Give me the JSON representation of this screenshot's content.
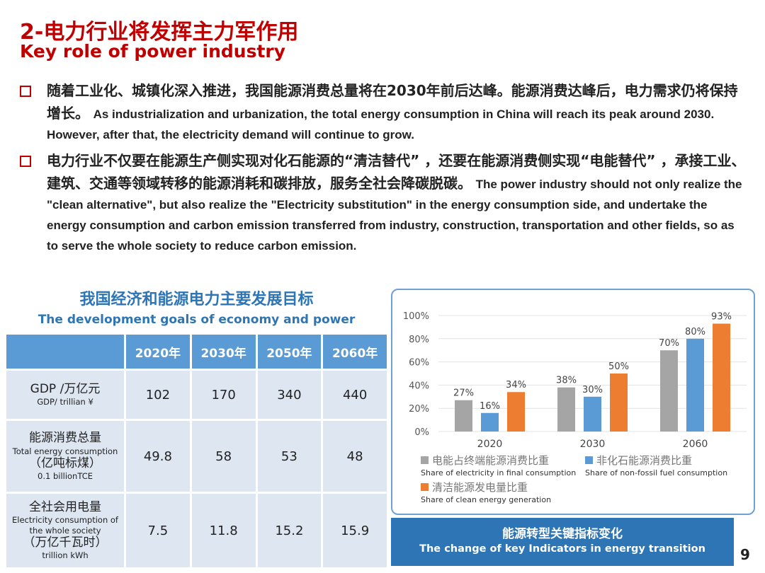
{
  "title": {
    "cn": "2-电力行业将发挥主力军作用",
    "en": "Key role of power industry"
  },
  "bullets": [
    {
      "cn": "随着工业化、城镇化深入推进，我国能源消费总量将在2030年前后达峰。能源消费达峰后，电力需求仍将保持增长。",
      "en": "As industrialization and urbanization, the total energy consumption in China will reach its peak around 2030. However, after that, the electricity demand will continue to grow."
    },
    {
      "cn": "电力行业不仅要在能源生产侧实现对化石能源的“清洁替代” ，还要在能源消费侧实现“电能替代” ，承接工业、建筑、交通等领域转移的能源消耗和碳排放，服务全社会降碳脱碳。",
      "en": "The power industry should not only realize the \"clean alternative\", but also realize the \"Electricity substitution\" in the energy consumption side, and undertake the energy consumption and carbon emission transferred from industry, construction, transportation and other fields, so as to serve the whole society to reduce carbon emission."
    }
  ],
  "table": {
    "title_cn": "我国经济和能源电力主要发展目标",
    "title_en": "The development goals of economy and power",
    "headers": [
      "",
      "2020年",
      "2030年",
      "2050年",
      "2060年"
    ],
    "rows": [
      {
        "label": [
          "GDP /万亿元",
          "GDP/ trillian ¥"
        ],
        "values": [
          "102",
          "170",
          "340",
          "440"
        ]
      },
      {
        "label": [
          "能源消费总量",
          "Total energy consumption",
          "（亿吨标煤）",
          "0.1 billionTCE"
        ],
        "values": [
          "49.8",
          "58",
          "53",
          "48"
        ]
      },
      {
        "label": [
          "全社会用电量",
          "Electricity consumption of the whole society",
          "（万亿千瓦时）",
          "trillion kWh"
        ],
        "values": [
          "7.5",
          "11.8",
          "15.2",
          "15.9"
        ]
      }
    ]
  },
  "chart_data": {
    "type": "bar",
    "categories": [
      "2020",
      "2030",
      "2060"
    ],
    "ylim": [
      0,
      100
    ],
    "yticks": [
      "0%",
      "20%",
      "40%",
      "60%",
      "80%",
      "100%"
    ],
    "grid": true,
    "legend_placement": "bottom",
    "series": [
      {
        "name": "电能占终端能源消费比重",
        "name_en": "Share of electricity in final consumption",
        "color": "#a5a5a5",
        "values": [
          27,
          38,
          70
        ],
        "labels": [
          "27%",
          "38%",
          "70%"
        ]
      },
      {
        "name": "非化石能源消费比重",
        "name_en": "Share of non-fossil fuel consumption",
        "color": "#5b9bd5",
        "values": [
          16,
          30,
          80
        ],
        "labels": [
          "16%",
          "30%",
          "80%"
        ]
      },
      {
        "name": "清洁能源发电量比重",
        "name_en": "Share of clean energy generation",
        "color": "#ed7d31",
        "values": [
          34,
          50,
          93
        ],
        "labels": [
          "34%",
          "50%",
          "93%"
        ]
      }
    ]
  },
  "banner": {
    "cn": "能源转型关键指标变化",
    "en": "The change of key Indicators in energy transition"
  },
  "page_number": "9"
}
